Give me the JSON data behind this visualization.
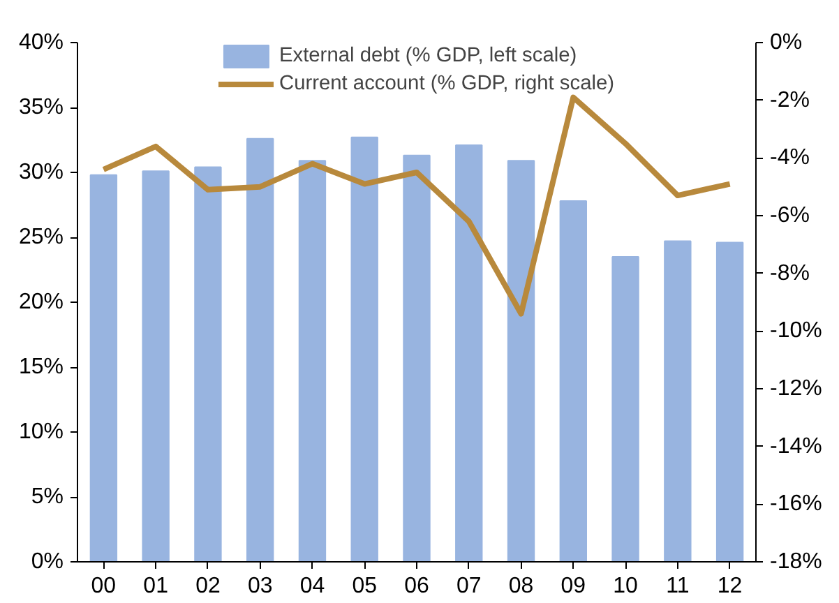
{
  "chart_data": {
    "type": "bar",
    "categories": [
      "00",
      "01",
      "02",
      "03",
      "04",
      "05",
      "06",
      "07",
      "08",
      "09",
      "10",
      "11",
      "12"
    ],
    "series": [
      {
        "name": "External debt (% GDP, left scale)",
        "color": "#98b4e0",
        "values": [
          29.8,
          30.1,
          30.4,
          32.6,
          30.9,
          32.7,
          31.3,
          32.1,
          30.9,
          27.8,
          23.5,
          24.7,
          24.6
        ]
      },
      {
        "name": "Current account (% GDP, right scale)",
        "type": "line",
        "axis": "y2",
        "color": "#b8893c",
        "values": [
          -4.4,
          -3.6,
          -5.1,
          -5.0,
          -4.2,
          -4.9,
          -4.5,
          -6.2,
          -9.4,
          -1.9,
          -3.5,
          -5.3,
          -4.9
        ]
      }
    ],
    "ylim": [
      0,
      40
    ],
    "yticks": [
      {
        "value": 0,
        "label": "0%"
      },
      {
        "value": 5,
        "label": "5%"
      },
      {
        "value": 10,
        "label": "10%"
      },
      {
        "value": 15,
        "label": "15%"
      },
      {
        "value": 20,
        "label": "20%"
      },
      {
        "value": 25,
        "label": "25%"
      },
      {
        "value": 30,
        "label": "30%"
      },
      {
        "value": 35,
        "label": "35%"
      },
      {
        "value": 40,
        "label": "40%"
      }
    ],
    "y2lim": [
      -18,
      0
    ],
    "y2ticks": [
      {
        "value": -18,
        "label": "-18%"
      },
      {
        "value": -16,
        "label": "-16%"
      },
      {
        "value": -14,
        "label": "-14%"
      },
      {
        "value": -12,
        "label": "-12%"
      },
      {
        "value": -10,
        "label": "-10%"
      },
      {
        "value": -8,
        "label": "-8%"
      },
      {
        "value": -6,
        "label": "-6%"
      },
      {
        "value": -4,
        "label": "-4%"
      },
      {
        "value": -2,
        "label": "-2%"
      },
      {
        "value": 0,
        "label": "0%"
      }
    ],
    "grid": false,
    "legend": "top",
    "line_style": "solid",
    "marker": "none"
  }
}
